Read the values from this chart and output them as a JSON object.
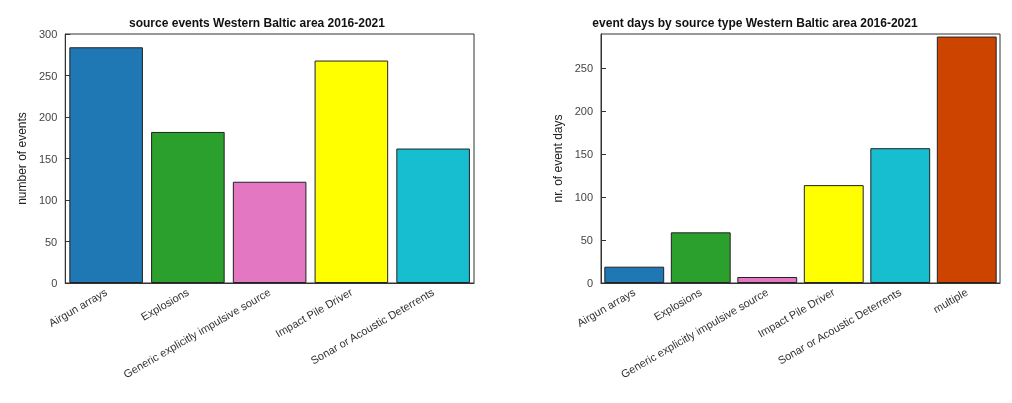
{
  "chart_data": [
    {
      "type": "bar",
      "title": "source events Western Baltic area 2016-2021",
      "ylabel": "number of events",
      "categories": [
        "Airgun arrays",
        "Explosions",
        "Generic explicitly impulsive source",
        "Impact Pile Driver",
        "Sonar or Acoustic Deterrents"
      ],
      "values": [
        284,
        182,
        122,
        268,
        162
      ],
      "colors": [
        "#1f77b4",
        "#2ca02c",
        "#e377c2",
        "#ffff00",
        "#17becf"
      ],
      "ylim": [
        0,
        300
      ],
      "yticks": [
        0,
        50,
        100,
        150,
        200,
        250,
        300
      ],
      "grid": false
    },
    {
      "type": "bar",
      "title": "event days by source type Western Baltic area 2016-2021",
      "ylabel": "nr. of event days",
      "categories": [
        "Airgun arrays",
        "Explosions",
        "Generic explicitly impulsive source",
        "Impact Pile Driver",
        "Sonar or Acoustic Deterrents",
        "multiple"
      ],
      "values": [
        19,
        59,
        7,
        114,
        157,
        287
      ],
      "colors": [
        "#1f77b4",
        "#2ca02c",
        "#e377c2",
        "#ffff00",
        "#17becf",
        "#cc4400"
      ],
      "ylim": [
        0,
        290
      ],
      "yticks": [
        0,
        50,
        100,
        150,
        200,
        250
      ],
      "grid": false
    }
  ]
}
